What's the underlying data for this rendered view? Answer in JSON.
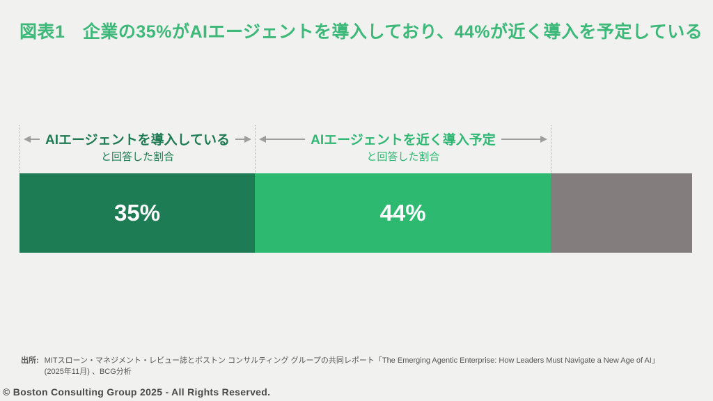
{
  "slide": {
    "title": "図表1　企業の35%がAIエージェントを導入しており、44%が近く導入を予定している"
  },
  "chart_data": {
    "type": "bar",
    "subtype": "horizontal-stacked-single",
    "unit": "%",
    "total": 100,
    "segments": [
      {
        "name": "adopted",
        "label": "AIエージェントを導入していると回答した割合",
        "value": 35,
        "display": "35%",
        "color": "#1E7C54",
        "text_color": "#FFFFFF"
      },
      {
        "name": "planned",
        "label": "AIエージェントを近く導入予定と回答した割合",
        "value": 44,
        "display": "44%",
        "color": "#2DBA70",
        "text_color": "#FFFFFF"
      },
      {
        "name": "remainder",
        "label": "",
        "value": 21,
        "display": "",
        "color": "#837D7D",
        "text_color": "#FFFFFF"
      }
    ]
  },
  "annotations": {
    "adopted": {
      "title": "AIエージェントを導入している",
      "subtitle": "と回答した割合",
      "color": "#1E7A52"
    },
    "planned": {
      "title": "AIエージェントを近く導入予定",
      "subtitle": "と回答した割合",
      "color": "#2FB873"
    }
  },
  "footer": {
    "source_label": "出所:",
    "source_line1": "MITスローン・マネジメント・レビュー誌とボストン コンサルティング グループの共同レポート「The Emerging Agentic Enterprise: How Leaders Must Navigate a New Age of AI」",
    "source_line2": "(2025年11月) 、BCG分析",
    "copyright": "© Boston Consulting Group 2025 - All Rights Reserved."
  },
  "colors": {
    "background": "#F1F1EF",
    "title": "#3CB878",
    "arrow": "#9E9E9E",
    "dotted_line": "#ABABAB",
    "footer_text": "#555555",
    "copyright_text": "#4A4A4A"
  }
}
